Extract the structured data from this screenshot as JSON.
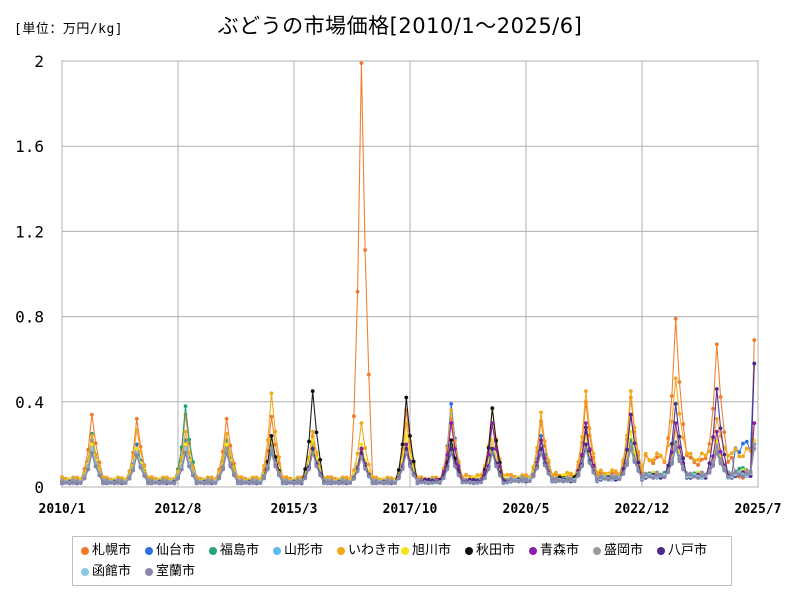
{
  "header": {
    "unit": "[単位：万円/kg]",
    "title": "ぶどうの市場価格[2010/1～2025/6]"
  },
  "chart_data": {
    "type": "line",
    "title": "ぶどうの市場価格[2010/1～2025/6]",
    "unit": "[単位：万円/kg]",
    "xlabel": "",
    "ylabel": "",
    "ylim": [
      0,
      2
    ],
    "yticks": [
      0,
      0.4,
      0.8,
      1.2,
      1.6,
      2
    ],
    "ytick_labels": [
      "0",
      "0.4",
      "0.8",
      "1.2",
      "1.6",
      "2"
    ],
    "xlim": [
      "2010/1",
      "2025/7"
    ],
    "xticks": [
      "2010/1",
      "2012/8",
      "2015/3",
      "2017/10",
      "2020/5",
      "2022/12",
      "2025/7"
    ],
    "grid": true,
    "legend_position": "bottom",
    "series": [
      {
        "name": "札幌市",
        "color": "#f07a2a",
        "peaks": [
          0.34,
          0.32,
          0.34,
          0.32,
          0.33,
          0.24,
          1.99,
          0.36,
          0.32,
          0.3,
          0.31,
          0.4,
          0.42,
          0.79,
          0.67,
          0.69
        ],
        "troughs": [
          0.04,
          0.03,
          0.04,
          0.04,
          0.04,
          0.04,
          0.04,
          0.03,
          0.04,
          0.05,
          0.05,
          0.05,
          0.06,
          0.13,
          0.12,
          0.05
        ]
      },
      {
        "name": "仙台市",
        "color": "#2f6fe0",
        "peaks": [
          0.22,
          0.2,
          0.22,
          0.21,
          0.2,
          0.2,
          0.16,
          0.2,
          0.39,
          0.22,
          0.24,
          0.25,
          0.22,
          0.21,
          0.2,
          0.58
        ],
        "troughs": [
          0.03,
          0.03,
          0.03,
          0.03,
          0.03,
          0.03,
          0.03,
          0.03,
          0.03,
          0.03,
          0.04,
          0.04,
          0.05,
          0.06,
          0.06,
          0.19
        ]
      },
      {
        "name": "福島市",
        "color": "#22a37a",
        "peaks": [
          0.25,
          0.18,
          0.38,
          0.22,
          0.22,
          0.2,
          0.18,
          0.2,
          0.2,
          0.22,
          0.18,
          0.2,
          0.22,
          0.2,
          0.18,
          0.2
        ],
        "troughs": [
          0.03,
          0.03,
          0.03,
          0.03,
          0.03,
          0.03,
          0.03,
          0.03,
          0.03,
          0.03,
          0.04,
          0.04,
          0.05,
          0.06,
          0.06,
          0.08
        ]
      },
      {
        "name": "山形市",
        "color": "#5bbcf0",
        "peaks": [
          0.2,
          0.18,
          0.2,
          0.18,
          0.18,
          0.18,
          0.16,
          0.18,
          0.18,
          0.18,
          0.18,
          0.2,
          0.2,
          0.2,
          0.18,
          0.2
        ],
        "troughs": [
          0.02,
          0.02,
          0.02,
          0.02,
          0.02,
          0.02,
          0.02,
          0.02,
          0.02,
          0.02,
          0.03,
          0.03,
          0.04,
          0.05,
          0.05,
          0.06
        ]
      },
      {
        "name": "いわき市",
        "color": "#f0a818",
        "peaks": [
          0.24,
          0.27,
          0.26,
          0.25,
          0.44,
          0.26,
          0.3,
          0.3,
          0.36,
          0.37,
          0.35,
          0.45,
          0.45,
          0.51,
          0.32,
          0.3
        ],
        "troughs": [
          0.04,
          0.04,
          0.04,
          0.04,
          0.04,
          0.04,
          0.04,
          0.04,
          0.04,
          0.05,
          0.05,
          0.06,
          0.07,
          0.14,
          0.14,
          0.16
        ]
      },
      {
        "name": "旭川市",
        "color": "#f5e31a",
        "peaks": [
          0.2,
          0.18,
          0.2,
          0.2,
          0.22,
          0.22,
          0.2,
          0.24,
          0.22,
          0.22,
          0.22,
          0.24,
          0.26,
          0.26,
          0.22,
          0.22
        ],
        "troughs": [
          0.03,
          0.03,
          0.03,
          0.03,
          0.03,
          0.03,
          0.03,
          0.03,
          0.03,
          0.04,
          0.04,
          0.05,
          0.05,
          0.06,
          0.06,
          0.07
        ]
      },
      {
        "name": "秋田市",
        "color": "#111111",
        "peaks": [
          0.16,
          0.15,
          0.16,
          0.16,
          0.24,
          0.45,
          0.18,
          0.42,
          0.22,
          0.37,
          0.22,
          0.28,
          0.2,
          0.2,
          0.18,
          0.2
        ],
        "troughs": [
          0.02,
          0.02,
          0.02,
          0.02,
          0.02,
          0.02,
          0.02,
          0.02,
          0.03,
          0.03,
          0.03,
          0.04,
          0.04,
          0.05,
          0.05,
          0.06
        ]
      },
      {
        "name": "青森市",
        "color": "#8a1fa8",
        "peaks": [
          0.18,
          0.16,
          0.18,
          0.18,
          0.18,
          0.18,
          0.18,
          0.2,
          0.3,
          0.3,
          0.22,
          0.3,
          0.34,
          0.3,
          0.26,
          0.3
        ],
        "troughs": [
          0.02,
          0.02,
          0.02,
          0.02,
          0.02,
          0.02,
          0.02,
          0.02,
          0.03,
          0.03,
          0.03,
          0.03,
          0.04,
          0.05,
          0.05,
          0.06
        ]
      },
      {
        "name": "盛岡市",
        "color": "#9a9a9a",
        "peaks": [
          0.18,
          0.16,
          0.18,
          0.18,
          0.18,
          0.18,
          0.16,
          0.18,
          0.18,
          0.18,
          0.18,
          0.2,
          0.2,
          0.2,
          0.18,
          0.2
        ],
        "troughs": [
          0.03,
          0.03,
          0.03,
          0.03,
          0.03,
          0.03,
          0.03,
          0.03,
          0.03,
          0.03,
          0.04,
          0.04,
          0.05,
          0.06,
          0.06,
          0.07
        ]
      },
      {
        "name": "八戸市",
        "color": "#4b2a8a",
        "peaks": [
          0.16,
          0.15,
          0.16,
          0.16,
          0.16,
          0.18,
          0.16,
          0.18,
          0.18,
          0.18,
          0.18,
          0.2,
          0.34,
          0.39,
          0.46,
          0.58
        ],
        "troughs": [
          0.02,
          0.02,
          0.02,
          0.02,
          0.02,
          0.02,
          0.02,
          0.02,
          0.03,
          0.03,
          0.03,
          0.03,
          0.04,
          0.05,
          0.05,
          0.06
        ]
      },
      {
        "name": "函館市",
        "color": "#8ec8e0",
        "peaks": [
          0.18,
          0.16,
          0.18,
          0.16,
          0.16,
          0.16,
          0.14,
          0.16,
          0.16,
          0.16,
          0.16,
          0.18,
          0.18,
          0.18,
          0.16,
          0.18
        ],
        "troughs": [
          0.02,
          0.02,
          0.02,
          0.02,
          0.02,
          0.02,
          0.02,
          0.02,
          0.02,
          0.02,
          0.03,
          0.03,
          0.04,
          0.05,
          0.05,
          0.06
        ]
      },
      {
        "name": "室蘭市",
        "color": "#8888a8",
        "peaks": [
          0.16,
          0.15,
          0.16,
          0.16,
          0.16,
          0.16,
          0.14,
          0.16,
          0.16,
          0.16,
          0.16,
          0.18,
          0.18,
          0.18,
          0.16,
          0.18
        ],
        "troughs": [
          0.02,
          0.02,
          0.02,
          0.02,
          0.02,
          0.02,
          0.02,
          0.02,
          0.02,
          0.02,
          0.03,
          0.03,
          0.04,
          0.05,
          0.05,
          0.06
        ]
      }
    ]
  }
}
